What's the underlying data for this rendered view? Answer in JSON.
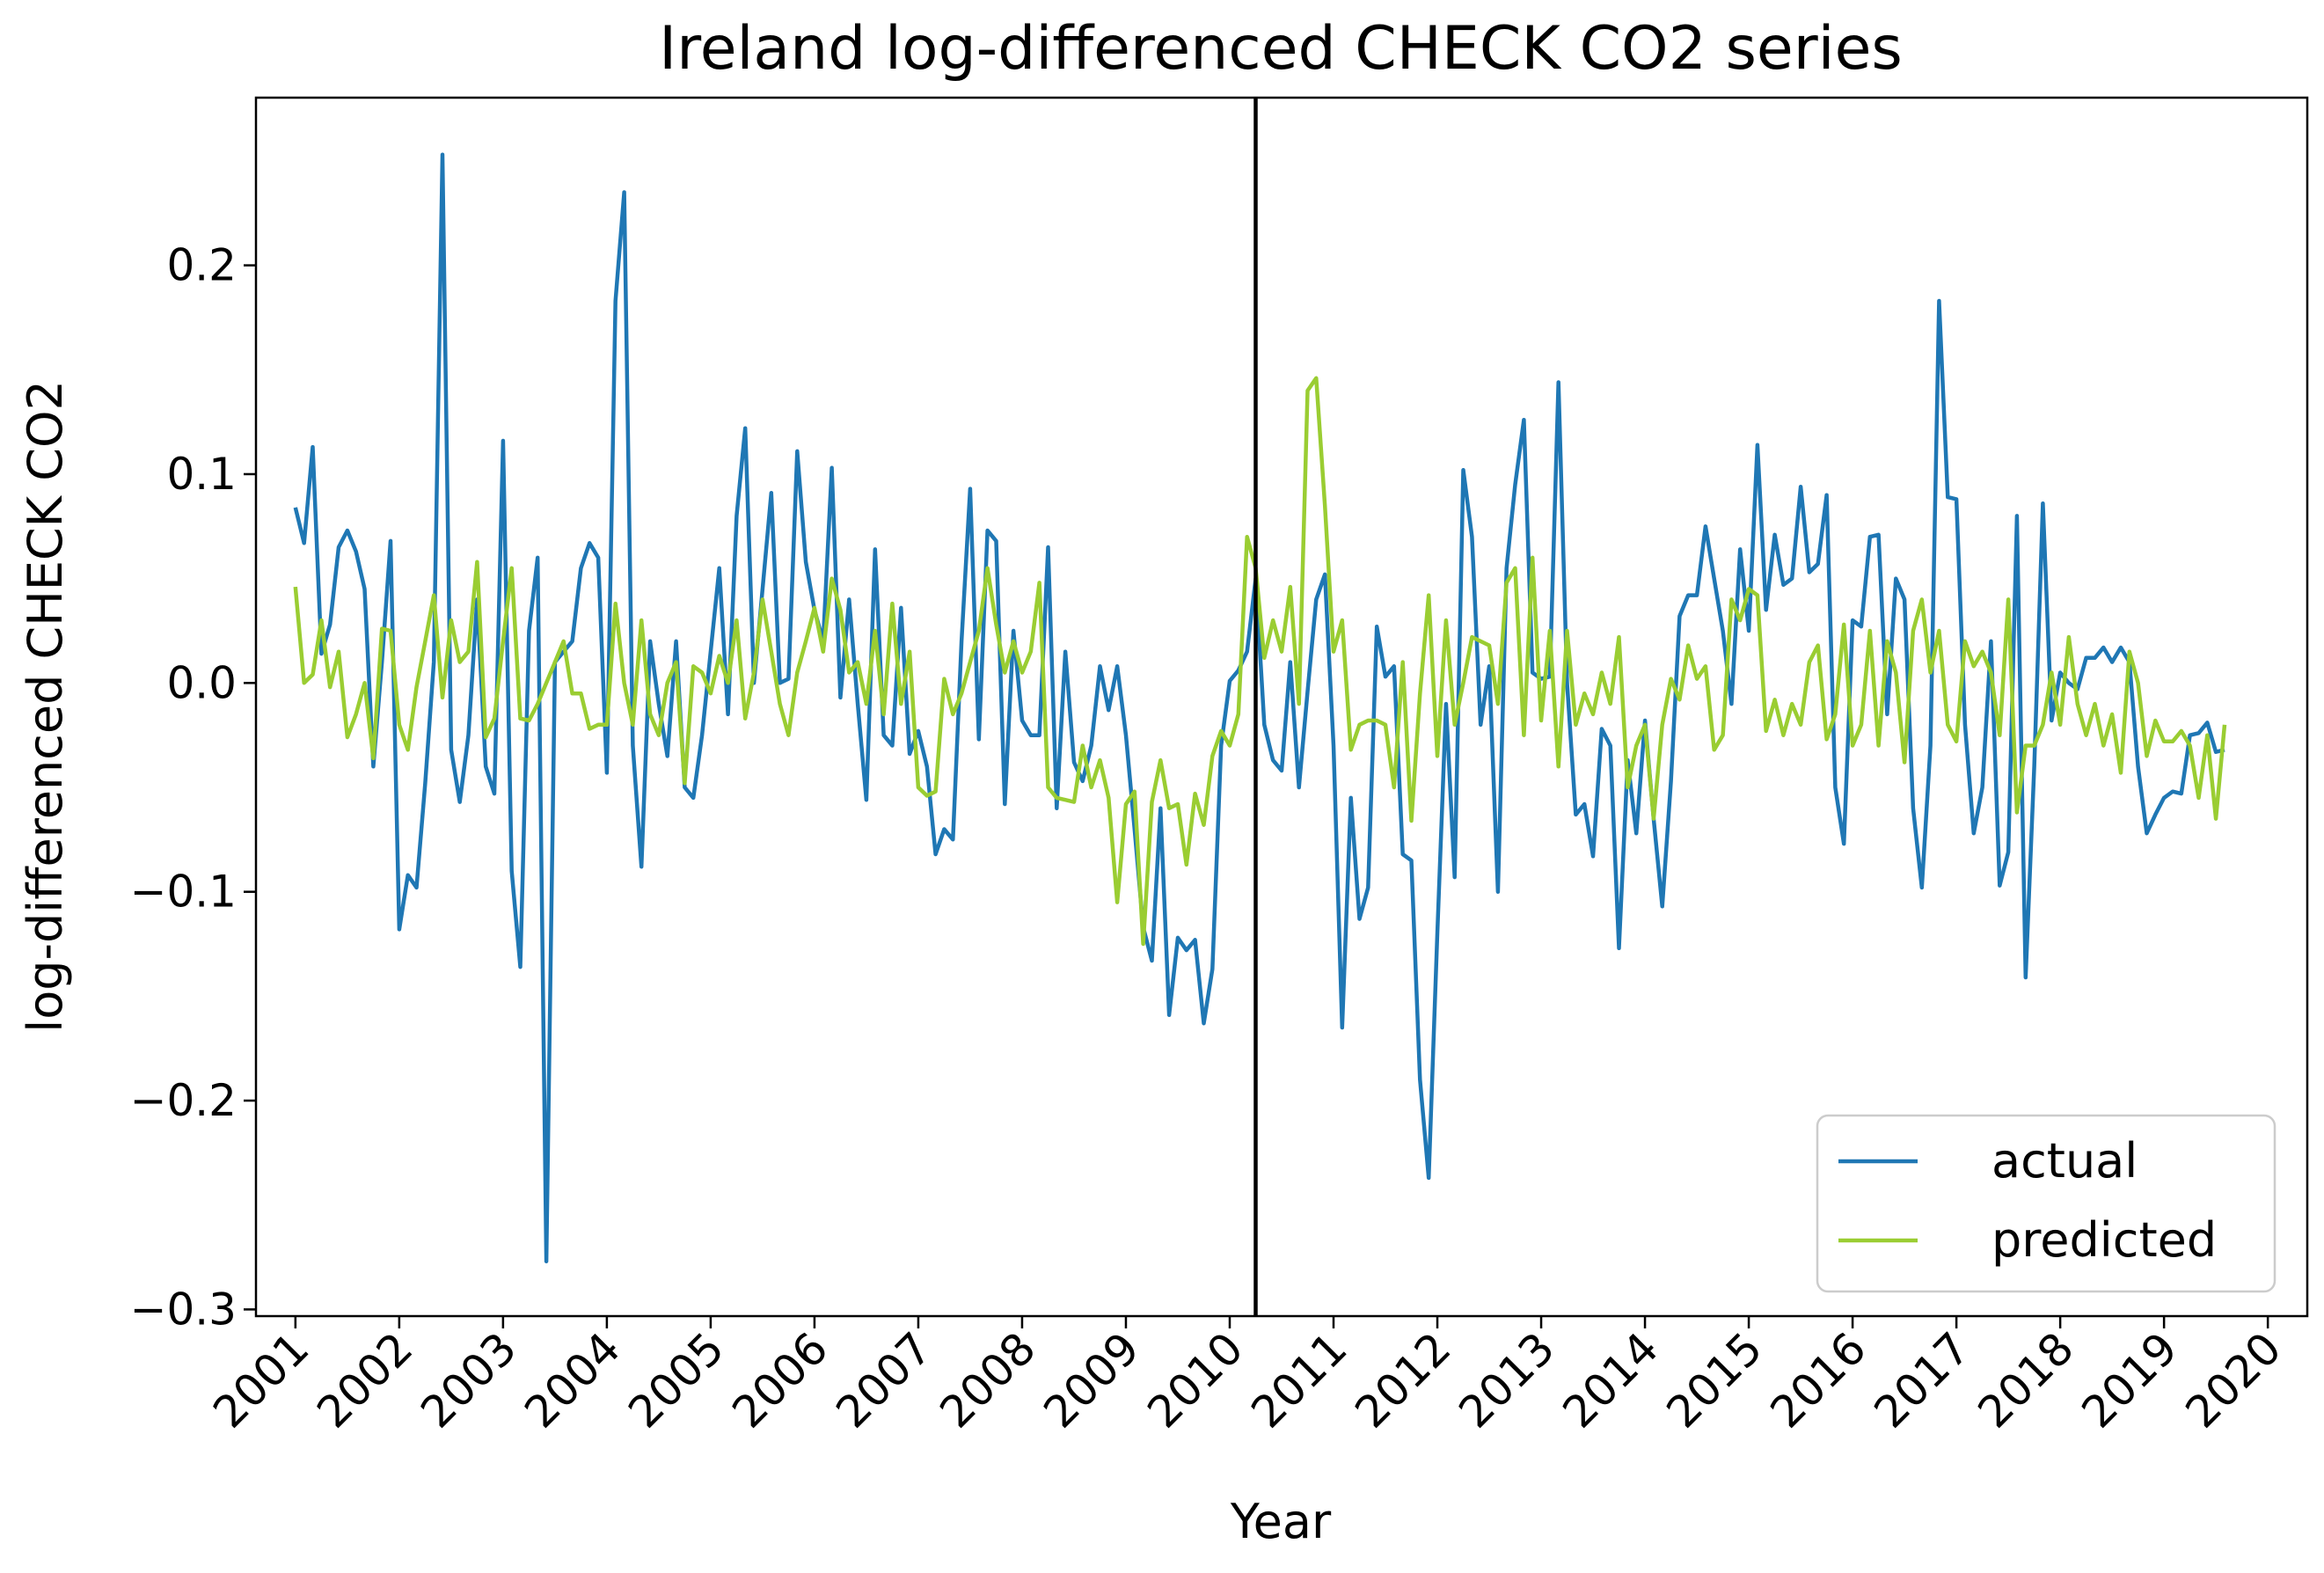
{
  "chart_data": {
    "type": "line",
    "title": "Ireland log-differenced CHECK CO2 series",
    "xlabel": "Year",
    "ylabel": "log-differenced CHECK CO2",
    "xlim": [
      2000.62,
      2020.38
    ],
    "ylim": [
      -0.3032,
      0.2803
    ],
    "x_ticks": [
      "2001",
      "2002",
      "2003",
      "2004",
      "2005",
      "2006",
      "2007",
      "2008",
      "2009",
      "2010",
      "2011",
      "2012",
      "2013",
      "2014",
      "2015",
      "2016",
      "2017",
      "2018",
      "2019",
      "2020"
    ],
    "y_ticks": [
      0.2,
      0.1,
      0.0,
      -0.1,
      -0.2,
      -0.3
    ],
    "y_tick_labels": [
      "0.2",
      "0.1",
      "0.0",
      "−0.1",
      "−0.2",
      "−0.3"
    ],
    "vline_x": 2010.25,
    "legend_position": "lower-right",
    "grid": false,
    "x_start": 2001.0,
    "x_step": 0.083333,
    "series": [
      {
        "name": "actual",
        "color": "#1f77b4",
        "values": [
          0.084,
          0.067,
          0.113,
          0.014,
          0.028,
          0.065,
          0.073,
          0.063,
          0.045,
          -0.04,
          0.01,
          0.068,
          -0.118,
          -0.092,
          -0.098,
          -0.048,
          0.01,
          0.253,
          -0.032,
          -0.057,
          -0.025,
          0.04,
          -0.04,
          -0.053,
          0.116,
          -0.09,
          -0.136,
          0.025,
          0.06,
          -0.277,
          0.01,
          0.015,
          0.02,
          0.055,
          0.067,
          0.06,
          -0.043,
          0.183,
          0.235,
          -0.03,
          -0.088,
          0.02,
          -0.01,
          -0.035,
          0.02,
          -0.05,
          -0.055,
          -0.025,
          0.015,
          0.055,
          -0.015,
          0.08,
          0.122,
          0.0,
          0.045,
          0.091,
          0.0,
          0.002,
          0.111,
          0.058,
          0.035,
          0.02,
          0.103,
          -0.007,
          0.04,
          -0.01,
          -0.056,
          0.064,
          -0.025,
          -0.03,
          0.036,
          -0.034,
          -0.023,
          -0.04,
          -0.082,
          -0.07,
          -0.075,
          0.02,
          0.093,
          -0.027,
          0.073,
          0.068,
          -0.058,
          0.025,
          -0.018,
          -0.025,
          -0.025,
          0.065,
          -0.06,
          0.015,
          -0.038,
          -0.047,
          -0.03,
          0.008,
          -0.013,
          0.008,
          -0.025,
          -0.07,
          -0.117,
          -0.133,
          -0.06,
          -0.159,
          -0.122,
          -0.128,
          -0.123,
          -0.163,
          -0.137,
          -0.03,
          0.001,
          0.006,
          0.015,
          0.05,
          -0.02,
          -0.037,
          -0.042,
          0.01,
          -0.05,
          -0.004,
          0.04,
          0.052,
          -0.03,
          -0.165,
          -0.055,
          -0.113,
          -0.098,
          0.027,
          0.003,
          0.008,
          -0.082,
          -0.085,
          -0.19,
          -0.237,
          -0.12,
          -0.01,
          -0.093,
          0.102,
          0.07,
          -0.02,
          0.008,
          -0.1,
          0.055,
          0.095,
          0.126,
          0.005,
          0.002,
          0.003,
          0.144,
          0.0,
          -0.063,
          -0.058,
          -0.083,
          -0.022,
          -0.03,
          -0.127,
          -0.037,
          -0.072,
          -0.018,
          -0.065,
          -0.107,
          -0.047,
          0.032,
          0.042,
          0.042,
          0.075,
          0.05,
          0.025,
          -0.01,
          0.064,
          0.025,
          0.114,
          0.035,
          0.071,
          0.047,
          0.05,
          0.094,
          0.053,
          0.057,
          0.09,
          -0.05,
          -0.077,
          0.03,
          0.027,
          0.07,
          0.071,
          -0.015,
          0.05,
          0.04,
          -0.06,
          -0.098,
          -0.03,
          0.183,
          0.089,
          0.088,
          -0.02,
          -0.072,
          -0.05,
          0.02,
          -0.097,
          -0.081,
          0.08,
          -0.141,
          -0.04,
          0.086,
          -0.018,
          0.005,
          0.0,
          -0.003,
          0.012,
          0.012,
          0.017,
          0.01,
          0.017,
          0.01,
          -0.04,
          -0.072,
          -0.063,
          -0.055,
          -0.052,
          -0.053,
          -0.025,
          -0.024,
          -0.019,
          -0.033,
          -0.032
        ]
      },
      {
        "name": "predicted",
        "color": "#9acd32",
        "values": [
          0.046,
          0.0,
          0.004,
          0.03,
          -0.002,
          0.015,
          -0.026,
          -0.015,
          0.0,
          -0.036,
          0.026,
          0.025,
          -0.02,
          -0.032,
          -0.002,
          0.02,
          0.042,
          -0.007,
          0.03,
          0.01,
          0.015,
          0.058,
          -0.026,
          -0.017,
          0.02,
          0.055,
          -0.017,
          -0.018,
          -0.01,
          0.0,
          0.01,
          0.02,
          -0.005,
          -0.005,
          -0.022,
          -0.02,
          -0.02,
          0.038,
          0.0,
          -0.02,
          0.03,
          -0.015,
          -0.025,
          0.0,
          0.01,
          -0.048,
          0.008,
          0.005,
          -0.005,
          0.013,
          0.0,
          0.03,
          -0.017,
          0.005,
          0.04,
          0.015,
          -0.01,
          -0.025,
          0.005,
          0.02,
          0.036,
          0.015,
          0.05,
          0.035,
          0.005,
          0.01,
          -0.01,
          0.025,
          -0.015,
          0.038,
          -0.01,
          0.015,
          -0.05,
          -0.054,
          -0.052,
          0.002,
          -0.015,
          -0.005,
          0.01,
          0.025,
          0.055,
          0.028,
          0.005,
          0.02,
          0.005,
          0.015,
          0.048,
          -0.05,
          -0.055,
          -0.056,
          -0.057,
          -0.03,
          -0.05,
          -0.037,
          -0.055,
          -0.105,
          -0.058,
          -0.052,
          -0.125,
          -0.057,
          -0.037,
          -0.06,
          -0.058,
          -0.087,
          -0.053,
          -0.068,
          -0.035,
          -0.023,
          -0.03,
          -0.015,
          0.07,
          0.055,
          0.012,
          0.03,
          0.015,
          0.046,
          -0.01,
          0.14,
          0.146,
          0.085,
          0.015,
          0.03,
          -0.032,
          -0.02,
          -0.018,
          -0.018,
          -0.02,
          -0.05,
          0.01,
          -0.066,
          -0.005,
          0.042,
          -0.035,
          0.03,
          -0.02,
          0.0,
          0.022,
          0.02,
          0.018,
          -0.01,
          0.048,
          0.055,
          -0.025,
          0.06,
          -0.018,
          0.025,
          -0.04,
          0.025,
          -0.02,
          -0.005,
          -0.015,
          0.005,
          -0.01,
          0.022,
          -0.05,
          -0.03,
          -0.02,
          -0.065,
          -0.02,
          0.002,
          -0.008,
          0.018,
          0.002,
          0.008,
          -0.032,
          -0.025,
          0.04,
          0.03,
          0.045,
          0.042,
          -0.023,
          -0.008,
          -0.025,
          -0.01,
          -0.02,
          0.01,
          0.018,
          -0.027,
          -0.015,
          0.028,
          -0.03,
          -0.02,
          0.025,
          -0.03,
          0.02,
          0.005,
          -0.038,
          0.025,
          0.04,
          0.005,
          0.025,
          -0.02,
          -0.028,
          0.02,
          0.008,
          0.015,
          0.005,
          -0.025,
          0.04,
          -0.062,
          -0.03,
          -0.03,
          -0.02,
          0.005,
          -0.02,
          0.022,
          -0.01,
          -0.025,
          -0.01,
          -0.03,
          -0.015,
          -0.043,
          0.015,
          0.0,
          -0.035,
          -0.018,
          -0.028,
          -0.028,
          -0.023,
          -0.03,
          -0.055,
          -0.025,
          -0.065,
          -0.02
        ]
      }
    ]
  }
}
